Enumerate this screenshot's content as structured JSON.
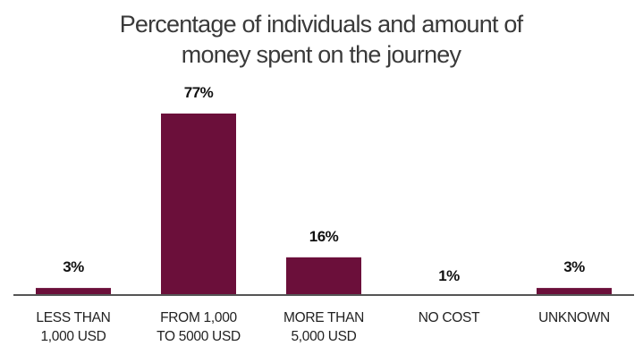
{
  "chart_data": {
    "type": "bar",
    "title_lines": [
      "Percentage of individuals and amount of",
      "money spent on the journey"
    ],
    "categories": [
      [
        "LESS THAN",
        "1,000 USD"
      ],
      [
        "FROM 1,000",
        "TO 5000 USD"
      ],
      [
        "MORE THAN",
        "5,000 USD"
      ],
      [
        "NO COST"
      ],
      [
        "UNKNOWN"
      ]
    ],
    "values": [
      3,
      77,
      16,
      1,
      3
    ],
    "value_labels": [
      "3%",
      "77%",
      "16%",
      "1%",
      "3%"
    ],
    "ylim": [
      0,
      77
    ],
    "grid": false,
    "legend": "none",
    "bar_color": "#6b0f3a",
    "axis_color": "#555555"
  }
}
